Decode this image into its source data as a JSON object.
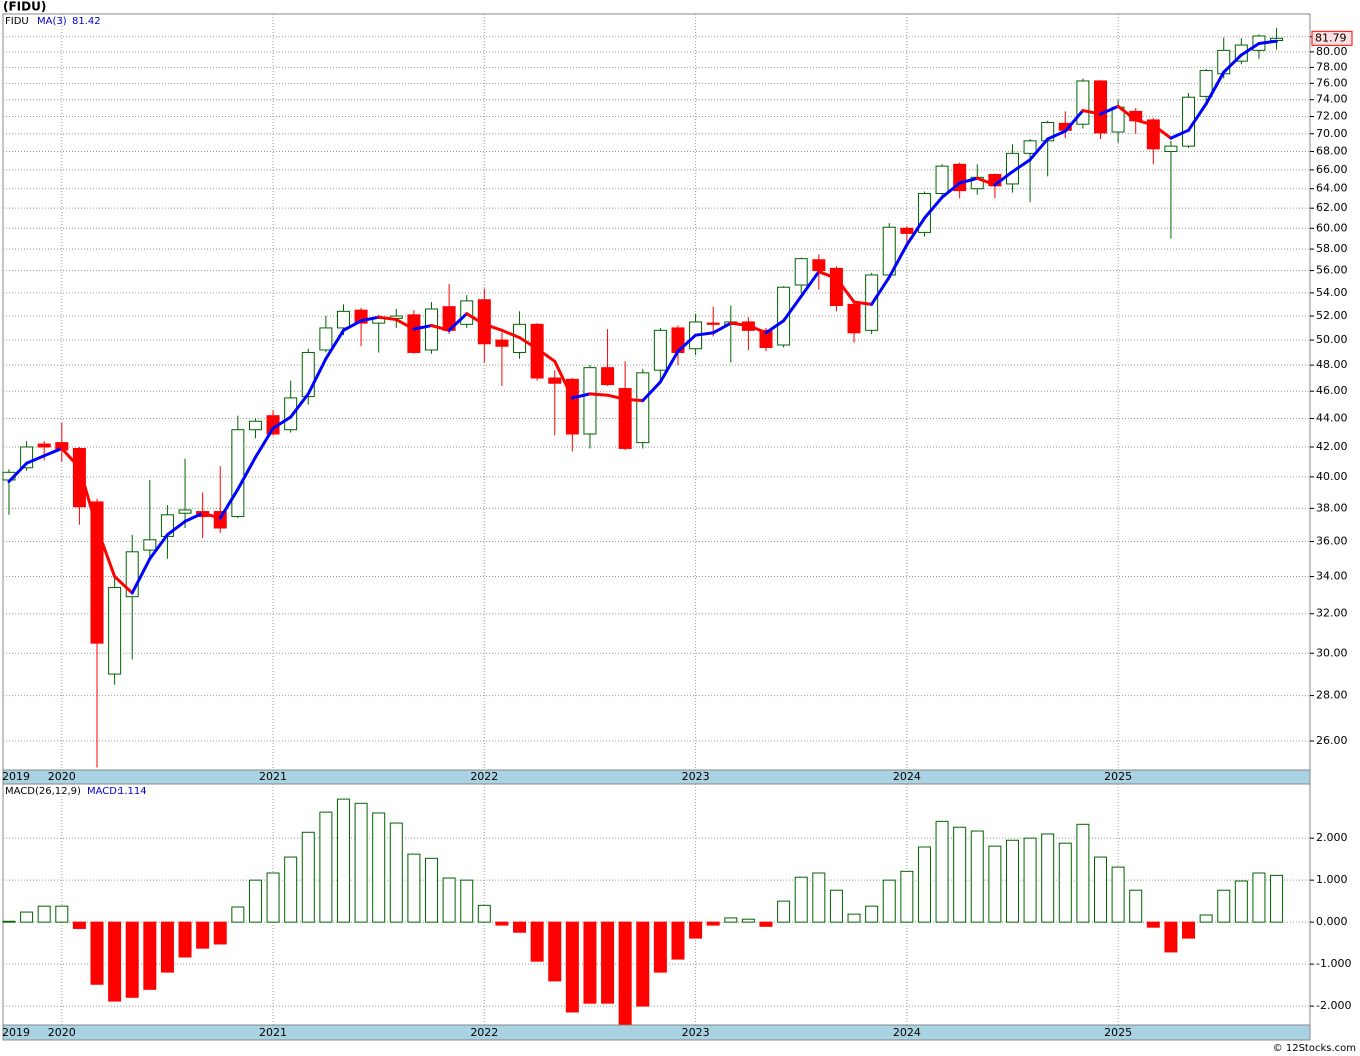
{
  "chart_data": [
    {
      "type": "candlestick",
      "title": "(FIDU)",
      "ticker": "FIDU",
      "log_scale": true,
      "grid": true,
      "up_color": "#006400",
      "down_color": "#ff0000",
      "open": [
        39.8,
        40.6,
        42.2,
        42.3,
        41.9,
        38.4,
        29,
        32.9,
        35.5,
        36.3,
        37.7,
        37.8,
        37.8,
        37.5,
        43.2,
        44.2,
        43.2,
        45.6,
        49.2,
        51,
        52.5,
        51.4,
        51.8,
        52.1,
        49.2,
        52.8,
        51.3,
        53.4,
        50,
        49,
        51.3,
        47,
        46.9,
        42.9,
        47.8,
        46.2,
        42.3,
        47.6,
        51,
        49.3,
        51.4,
        51.3,
        51.5,
        50.8,
        49.6,
        54.7,
        57,
        56.2,
        53,
        50.8,
        55.6,
        60,
        59.6,
        63.5,
        66.6,
        64,
        65.5,
        64.5,
        67.8,
        69.2,
        71.2,
        71.1,
        76.3,
        70.2,
        72.6,
        71.6,
        68,
        68.6,
        74.4,
        77.2,
        78.8,
        80.2,
        81.5
      ],
      "high": [
        40.5,
        42.4,
        42.4,
        43.7,
        42,
        38.6,
        34,
        36.4,
        39.8,
        38.2,
        41.2,
        39,
        40.7,
        44.2,
        44,
        44.6,
        46.8,
        49.3,
        52,
        53,
        52.7,
        52.1,
        52.6,
        52.5,
        53.2,
        54.8,
        53.8,
        54.4,
        50.6,
        52.4,
        51.4,
        47.6,
        47,
        48,
        50.9,
        48.3,
        47.7,
        51,
        51.2,
        52.2,
        52.8,
        52.9,
        51.9,
        51,
        54.6,
        57.2,
        57.5,
        56.4,
        53.2,
        55.8,
        60.5,
        60.2,
        63.7,
        66.6,
        66.8,
        66.6,
        65.6,
        68.8,
        69.4,
        71.5,
        72.6,
        76.6,
        76.4,
        74,
        73,
        71.8,
        69.2,
        74.8,
        77.8,
        81.9,
        81.8,
        82.3,
        83.2
      ],
      "low": [
        37.6,
        40.4,
        41.1,
        41,
        37,
        24.9,
        28.5,
        29.7,
        35,
        35,
        36.8,
        36.2,
        36.5,
        37.4,
        42.6,
        42.8,
        43,
        45,
        49,
        50.4,
        49.5,
        49,
        51,
        48.9,
        48.9,
        50.5,
        51,
        48.2,
        46.4,
        48.5,
        46.8,
        42.8,
        41.7,
        41.9,
        46.4,
        41.8,
        41.9,
        46.8,
        48,
        48.8,
        50.3,
        48.2,
        49.2,
        49.1,
        49.4,
        54,
        54.3,
        52.4,
        49.8,
        50.5,
        55.4,
        58.3,
        59.2,
        63.2,
        63,
        63.4,
        63,
        63.6,
        62.6,
        65.3,
        69.5,
        70.6,
        69.4,
        69,
        70,
        66.6,
        59,
        68.4,
        73.8,
        76.6,
        78.4,
        79.1,
        80.3
      ],
      "close": [
        40.3,
        42,
        42,
        41.8,
        38.1,
        30.5,
        33.4,
        35.4,
        36.1,
        37.6,
        37.9,
        37.5,
        36.8,
        43.2,
        43.8,
        42.9,
        45.5,
        49,
        51,
        52.4,
        51.4,
        51.8,
        52,
        49,
        52.6,
        50.8,
        53.3,
        49.7,
        49.5,
        51.3,
        47,
        46.6,
        42.9,
        47.8,
        46.5,
        41.9,
        47.4,
        50.8,
        49,
        51.5,
        51.3,
        51.5,
        50.8,
        49.4,
        54.5,
        57.1,
        56,
        52.9,
        50.6,
        55.6,
        60.1,
        59.5,
        63.5,
        66.4,
        63.8,
        65.2,
        64.3,
        67.8,
        69.2,
        71.3,
        70.4,
        76.3,
        70.1,
        73.1,
        71.5,
        68.3,
        68.6,
        74.3,
        77.6,
        80.2,
        80.9,
        82.1,
        81.79
      ],
      "ma": {
        "name": "MA(3)",
        "up_color": "#0000ff",
        "down_color": "#ff0000",
        "values": [
          39.7,
          40.9,
          41.4,
          41.9,
          40.6,
          36.8,
          34,
          33.1,
          35,
          36.4,
          37.2,
          37.7,
          37.4,
          39.2,
          41.3,
          43.3,
          44.1,
          45.8,
          48.5,
          50.8,
          51.6,
          51.9,
          51.7,
          50.9,
          51.2,
          50.8,
          52.2,
          51.3,
          50.8,
          50.2,
          49.3,
          48.3,
          45.5,
          45.8,
          45.7,
          45.4,
          45.3,
          46.7,
          49.1,
          50.4,
          50.6,
          51.4,
          51.2,
          50.6,
          51.6,
          53.7,
          55.9,
          55.3,
          53.2,
          53,
          55.4,
          58.4,
          61,
          63.1,
          64.6,
          65.1,
          64.4,
          65.8,
          67.1,
          69.4,
          70.3,
          72.7,
          72.3,
          73.2,
          71.6,
          71,
          69.5,
          70.4,
          73.5,
          77.4,
          79.6,
          81.1,
          81.42
        ]
      },
      "xlim": [
        -0.34,
        73.9
      ],
      "xticks": [
        {
          "value": 0.4,
          "label": "2019"
        },
        {
          "value": 3,
          "label": "2020"
        },
        {
          "value": 15,
          "label": "2021"
        },
        {
          "value": 27,
          "label": "2022"
        },
        {
          "value": 39,
          "label": "2023"
        },
        {
          "value": 51,
          "label": "2024"
        },
        {
          "value": 63,
          "label": "2025"
        }
      ],
      "ylim": [
        24.8,
        85.1
      ],
      "yticks": [
        {
          "value": 26,
          "label": "26.00"
        },
        {
          "value": 28,
          "label": "28.00"
        },
        {
          "value": 30,
          "label": "30.00"
        },
        {
          "value": 32,
          "label": "32.00"
        },
        {
          "value": 34,
          "label": "34.00"
        },
        {
          "value": 36,
          "label": "36.00"
        },
        {
          "value": 38,
          "label": "38.00"
        },
        {
          "value": 40,
          "label": "40.00"
        },
        {
          "value": 42,
          "label": "42.00"
        },
        {
          "value": 44,
          "label": "44.00"
        },
        {
          "value": 46,
          "label": "46.00"
        },
        {
          "value": 48,
          "label": "48.00"
        },
        {
          "value": 50,
          "label": "50.00"
        },
        {
          "value": 52,
          "label": "52.00"
        },
        {
          "value": 54,
          "label": "54.00"
        },
        {
          "value": 56,
          "label": "56.00"
        },
        {
          "value": 58,
          "label": "58.00"
        },
        {
          "value": 60,
          "label": "60.00"
        },
        {
          "value": 62,
          "label": "62.00"
        },
        {
          "value": 64,
          "label": "64.00"
        },
        {
          "value": 66,
          "label": "66.00"
        },
        {
          "value": 68,
          "label": "68.00"
        },
        {
          "value": 70,
          "label": "70.00"
        },
        {
          "value": 72,
          "label": "72.00"
        },
        {
          "value": 74,
          "label": "74.00"
        },
        {
          "value": 76,
          "label": "76.00"
        },
        {
          "value": 78,
          "label": "78.00"
        },
        {
          "value": 80,
          "label": "80.00"
        },
        {
          "value": 82,
          "label": "82.00"
        }
      ]
    },
    {
      "type": "bar",
      "name": "MACD(26,12,9)",
      "value_prefix": "MACD:",
      "grid": true,
      "up_color": "#006400",
      "down_color": "#ff0000",
      "values": [
        0.02,
        0.24,
        0.38,
        0.38,
        -0.15,
        -1.48,
        -1.88,
        -1.79,
        -1.6,
        -1.19,
        -0.83,
        -0.62,
        -0.52,
        0.36,
        1,
        1.17,
        1.55,
        2.14,
        2.62,
        2.93,
        2.83,
        2.6,
        2.36,
        1.62,
        1.52,
        1.05,
        1,
        0.4,
        -0.07,
        -0.24,
        -0.93,
        -1.4,
        -2.14,
        -1.93,
        -1.93,
        -2.43,
        -2,
        -1.19,
        -0.88,
        -0.38,
        -0.07,
        0.1,
        0.07,
        -0.1,
        0.5,
        1.07,
        1.17,
        0.76,
        0.19,
        0.38,
        1,
        1.21,
        1.79,
        2.4,
        2.26,
        2.17,
        1.81,
        1.95,
        2,
        2.1,
        1.88,
        2.33,
        1.55,
        1.31,
        0.76,
        -0.12,
        -0.71,
        -0.38,
        0.17,
        0.76,
        0.98,
        1.17,
        1.114
      ],
      "xlim": [
        -0.34,
        73.9
      ],
      "xticks": [
        {
          "value": 0.4,
          "label": "2019"
        },
        {
          "value": 3,
          "label": "2020"
        },
        {
          "value": 15,
          "label": "2021"
        },
        {
          "value": 27,
          "label": "2022"
        },
        {
          "value": 39,
          "label": "2023"
        },
        {
          "value": 51,
          "label": "2024"
        },
        {
          "value": 63,
          "label": "2025"
        }
      ],
      "ylim": [
        -2.45,
        3.29
      ],
      "yticks": [
        {
          "value": -2,
          "label": "-2.000"
        },
        {
          "value": -1,
          "label": "-1.000"
        },
        {
          "value": 0,
          "label": "0.000"
        },
        {
          "value": 1,
          "label": "1.000"
        },
        {
          "value": 2,
          "label": "2.000"
        }
      ]
    }
  ],
  "footer": "© 12Stocks.com"
}
